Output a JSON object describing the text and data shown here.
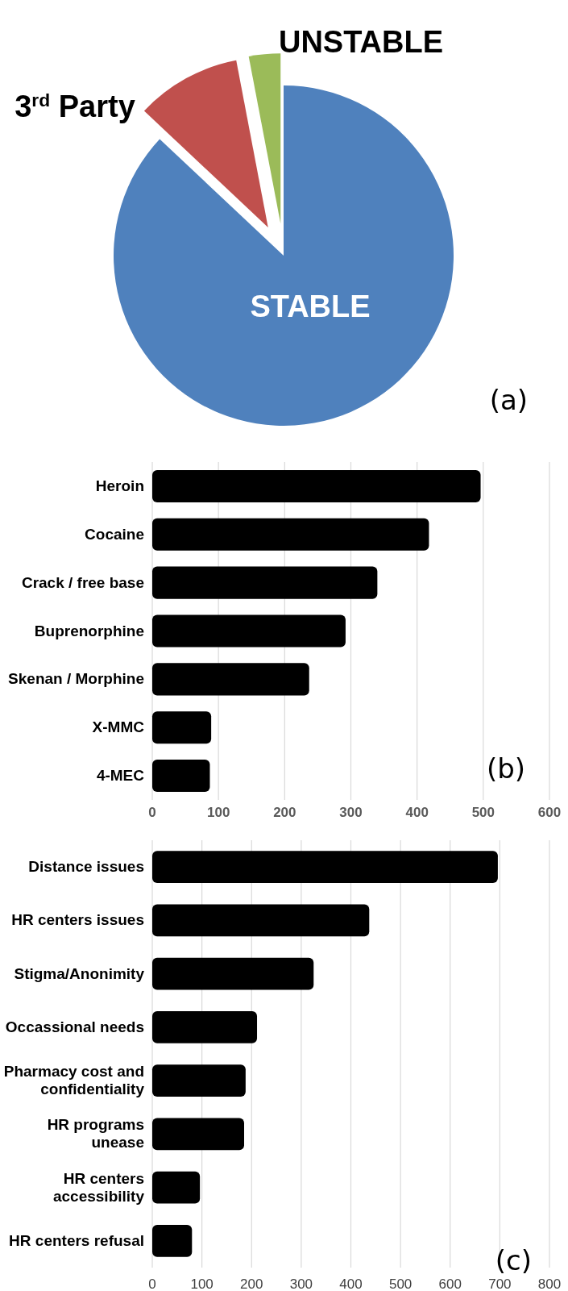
{
  "chart_data": [
    {
      "type": "pie",
      "categories": [
        "STABLE",
        "3$^{rd}$ Party",
        "UNSTABLE"
      ],
      "values": [
        87,
        10,
        3
      ],
      "colors": [
        "#4f81bd",
        "#c0504d",
        "#9bbb59"
      ],
      "annotations": [
        "(a)"
      ]
    },
    {
      "type": "bar",
      "orientation": "horizontal",
      "categories": [
        "Heroin",
        "Cocaine",
        "Crack / free base",
        "Buprenorphine",
        "Skenan / Morphine",
        "X-MMC",
        "4-MEC"
      ],
      "values": [
        496,
        418,
        340,
        292,
        237,
        89,
        87
      ],
      "color": "#000000",
      "xlim": [
        0,
        600
      ],
      "xticks": [
        0,
        100,
        200,
        300,
        400,
        500,
        600
      ],
      "grid": "x",
      "annotations": [
        "(b)"
      ]
    },
    {
      "type": "bar",
      "orientation": "horizontal",
      "categories": [
        "Distance issues",
        "HR centers issues",
        "Stigma/Anonimity",
        "Occassional needs",
        "Pharmacy cost and confidentiality",
        "HR programs unease",
        "HR centers accessibility",
        "HR centers refusal"
      ],
      "values": [
        696,
        437,
        325,
        211,
        188,
        185,
        96,
        80
      ],
      "color": "#000000",
      "xlim": [
        0,
        800
      ],
      "xticks": [
        0,
        100,
        200,
        300,
        400,
        500,
        600,
        700,
        800
      ],
      "grid": "x",
      "annotations": [
        "(c)"
      ]
    }
  ]
}
